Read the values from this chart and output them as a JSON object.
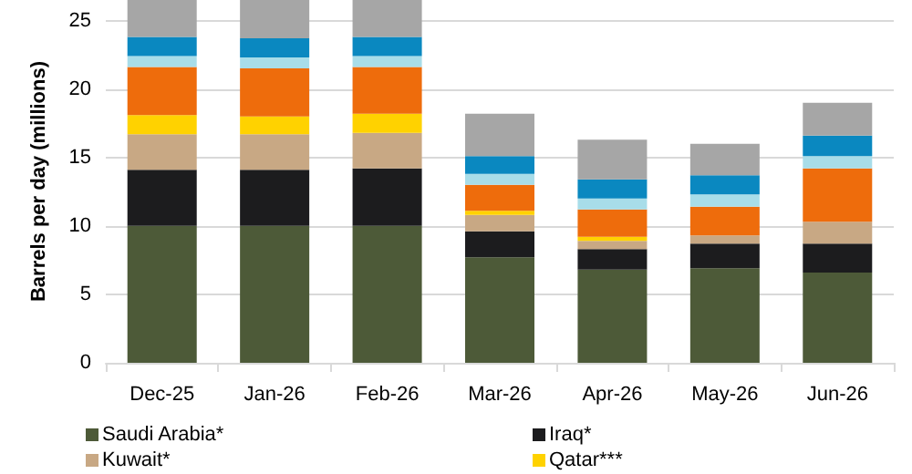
{
  "chart_data": {
    "type": "bar",
    "stacked": true,
    "ylabel": "Barrels per day (millions)",
    "categories": [
      "Dec-25",
      "Jan-26",
      "Feb-26",
      "Mar-26",
      "Apr-26",
      "May-26",
      "Jun-26"
    ],
    "series": [
      {
        "name": "Saudi Arabia*",
        "color": "#4d5a38",
        "values": [
          10.0,
          10.0,
          10.0,
          7.7,
          6.8,
          6.9,
          6.6
        ]
      },
      {
        "name": "Iraq*",
        "color": "#1c1c1e",
        "values": [
          4.1,
          4.1,
          4.2,
          1.9,
          1.5,
          1.8,
          2.1
        ]
      },
      {
        "name": "Kuwait*",
        "color": "#c8a884",
        "values": [
          2.6,
          2.6,
          2.6,
          1.2,
          0.6,
          0.6,
          1.6
        ]
      },
      {
        "name": "Qatar***",
        "color": "#ffd200",
        "values": [
          1.4,
          1.3,
          1.4,
          0.3,
          0.3,
          0,
          0
        ]
      },
      {
        "color": "#ee6c0c",
        "values": [
          3.5,
          3.5,
          3.4,
          1.9,
          2.0,
          2.1,
          3.9
        ]
      },
      {
        "color": "#a8dde9",
        "values": [
          0.8,
          0.8,
          0.8,
          0.8,
          0.8,
          0.9,
          0.9
        ]
      },
      {
        "color": "#0a88c0",
        "values": [
          1.4,
          1.4,
          1.4,
          1.3,
          1.4,
          1.4,
          1.5
        ]
      },
      {
        "color": "#a6a6a6",
        "values": [
          2.7,
          2.8,
          2.7,
          3.1,
          2.9,
          2.3,
          2.4
        ]
      }
    ],
    "ylim": [
      0,
      26.5
    ],
    "yticks": [
      0,
      5,
      10,
      15,
      20,
      25
    ],
    "grid": "y",
    "legend": "bottom"
  }
}
